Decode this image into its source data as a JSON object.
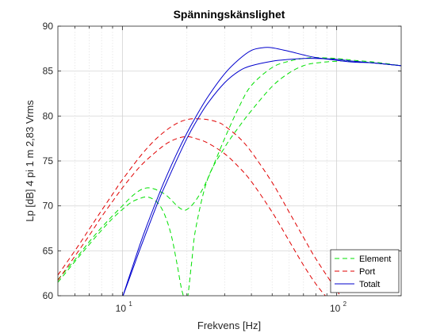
{
  "chart_data": {
    "type": "line",
    "title": "Spänningskänslighet",
    "xlabel": "Frekvens [Hz]",
    "ylabel": "Lp [dB] 4 pi 1 m 2,83 Vrms",
    "x_scale": "log",
    "xlim": [
      5,
      200
    ],
    "ylim": [
      60,
      90
    ],
    "y_ticks": [
      60,
      65,
      70,
      75,
      80,
      85,
      90
    ],
    "x_ticks": [
      {
        "value": 10,
        "base": "10",
        "exp": "1"
      },
      {
        "value": 100,
        "base": "10",
        "exp": "2"
      }
    ],
    "grid": true,
    "legend_position": "bottom-right",
    "series": [
      {
        "name": "Element",
        "color": "#00e000",
        "style": "dashed",
        "x": [
          5,
          6,
          7,
          8,
          9,
          10,
          11,
          12,
          13,
          14,
          15,
          16,
          17,
          18,
          19,
          20,
          22,
          25,
          30,
          35,
          40,
          50,
          60,
          70,
          80,
          100,
          120,
          150,
          200
        ],
        "y": [
          61.8,
          64.0,
          66.0,
          67.6,
          68.9,
          70.0,
          71.0,
          71.7,
          72.0,
          71.9,
          71.6,
          71.2,
          70.6,
          70.0,
          69.6,
          69.6,
          70.6,
          73.0,
          77.5,
          81.0,
          83.4,
          85.4,
          86.1,
          86.4,
          86.5,
          86.4,
          86.2,
          86.0,
          85.6
        ]
      },
      {
        "name": "Element",
        "color": "#00e000",
        "style": "dashed",
        "x": [
          5,
          6,
          7,
          8,
          9,
          10,
          11,
          12,
          13,
          14,
          15,
          16,
          17,
          18,
          19,
          20,
          21,
          22,
          25,
          30,
          35,
          40,
          50,
          60,
          70,
          80,
          100,
          120,
          150,
          200
        ],
        "y": [
          61.5,
          63.8,
          65.7,
          67.3,
          68.6,
          69.6,
          70.4,
          70.8,
          71.0,
          70.7,
          70.0,
          68.6,
          66.5,
          63.5,
          60.5,
          59.5,
          63.5,
          67.5,
          73.0,
          76.5,
          78.8,
          80.6,
          83.3,
          84.8,
          85.6,
          85.9,
          86.1,
          86.1,
          85.9,
          85.6
        ]
      },
      {
        "name": "Port",
        "color": "#e00000",
        "style": "dashed",
        "x": [
          5,
          6,
          7,
          8,
          9,
          10,
          12,
          14,
          16,
          18,
          20,
          22,
          25,
          28,
          30,
          35,
          40,
          50,
          60,
          70,
          80,
          100,
          110
        ],
        "y": [
          62.3,
          65.0,
          67.4,
          69.5,
          71.3,
          72.9,
          75.4,
          77.2,
          78.4,
          79.2,
          79.6,
          79.7,
          79.6,
          79.3,
          78.9,
          77.6,
          76.0,
          72.6,
          69.3,
          66.5,
          64.1,
          60.6,
          59.2
        ]
      },
      {
        "name": "Port",
        "color": "#e00000",
        "style": "dashed",
        "x": [
          5,
          6,
          7,
          8,
          9,
          10,
          12,
          14,
          16,
          18,
          20,
          22,
          25,
          30,
          35,
          40,
          50,
          60,
          70,
          80,
          90,
          100
        ],
        "y": [
          61.7,
          64.4,
          66.7,
          68.8,
          70.5,
          72.0,
          74.3,
          75.8,
          76.9,
          77.5,
          77.7,
          77.5,
          77.0,
          75.8,
          74.3,
          72.7,
          69.3,
          66.1,
          63.4,
          61.3,
          59.8,
          58.6
        ]
      },
      {
        "name": "Totalt",
        "color": "#0000cd",
        "style": "solid",
        "x": [
          10,
          11,
          12,
          13,
          14,
          15,
          16,
          18,
          20,
          22,
          25,
          30,
          35,
          40,
          45,
          50,
          60,
          70,
          80,
          100,
          120,
          150,
          200
        ],
        "y": [
          59.8,
          62.8,
          65.5,
          67.8,
          69.8,
          71.6,
          73.2,
          75.9,
          78.1,
          79.9,
          82.1,
          84.7,
          86.3,
          87.3,
          87.6,
          87.6,
          87.2,
          86.8,
          86.5,
          86.2,
          86.0,
          85.9,
          85.6
        ]
      },
      {
        "name": "Totalt",
        "color": "#0000cd",
        "style": "solid",
        "x": [
          10,
          11,
          12,
          13,
          14,
          15,
          16,
          18,
          20,
          22,
          25,
          30,
          35,
          40,
          50,
          60,
          70,
          80,
          100,
          120,
          150,
          200
        ],
        "y": [
          59.8,
          62.5,
          65.0,
          67.2,
          69.2,
          71.0,
          72.5,
          75.2,
          77.5,
          79.3,
          81.4,
          83.7,
          85.0,
          85.6,
          86.1,
          86.3,
          86.4,
          86.4,
          86.3,
          86.1,
          85.9,
          85.6
        ]
      }
    ],
    "legend": [
      {
        "label": "Element",
        "color": "#00e000",
        "style": "dashed"
      },
      {
        "label": "Port",
        "color": "#e00000",
        "style": "dashed"
      },
      {
        "label": "Totalt",
        "color": "#0000cd",
        "style": "solid"
      }
    ]
  }
}
